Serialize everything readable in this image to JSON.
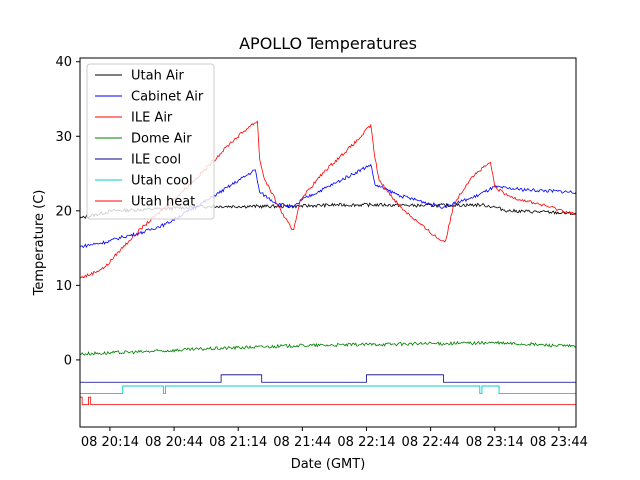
{
  "chart_data": {
    "type": "line",
    "title": "APOLLO Temperatures",
    "xlabel": "Date (GMT)",
    "ylabel": "Temperature (C)",
    "xlim": [
      1200,
      1432
    ],
    "ylim": [
      -9,
      40.5
    ],
    "x_ticks": [
      {
        "value": 1214,
        "label": "08 20:14"
      },
      {
        "value": 1244,
        "label": "08 20:44"
      },
      {
        "value": 1274,
        "label": "08 21:14"
      },
      {
        "value": 1304,
        "label": "08 21:44"
      },
      {
        "value": 1334,
        "label": "08 22:14"
      },
      {
        "value": 1364,
        "label": "08 22:44"
      },
      {
        "value": 1394,
        "label": "08 23:14"
      },
      {
        "value": 1424,
        "label": "08 23:44"
      }
    ],
    "y_ticks": [
      {
        "value": 0,
        "label": "0"
      },
      {
        "value": 10,
        "label": "10"
      },
      {
        "value": 20,
        "label": "20"
      },
      {
        "value": 30,
        "label": "30"
      },
      {
        "value": 40,
        "label": "40"
      }
    ],
    "legend_position": "top-left",
    "series": [
      {
        "name": "Utah Air",
        "color": "#000000",
        "x": [
          1200,
          1215,
          1240,
          1260,
          1280,
          1300,
          1320,
          1340,
          1360,
          1388,
          1394,
          1400,
          1420,
          1432
        ],
        "y": [
          19,
          20,
          20.3,
          20.6,
          20.6,
          20.6,
          20.8,
          20.8,
          20.7,
          20.8,
          20.5,
          20,
          19.8,
          19.6
        ]
      },
      {
        "name": "Cabinet Air",
        "color": "#0000ff",
        "x": [
          1200,
          1212,
          1220,
          1228,
          1240,
          1260,
          1282,
          1284,
          1292,
          1300,
          1304,
          1320,
          1336,
          1338,
          1350,
          1370,
          1384,
          1394,
          1400,
          1410,
          1432
        ],
        "y": [
          15.2,
          15.8,
          16.5,
          17,
          18.2,
          21.5,
          25.5,
          22.5,
          21,
          20.5,
          21.5,
          23.8,
          26.2,
          23.5,
          22,
          20.5,
          21.8,
          23.2,
          23,
          22.8,
          22.5
        ]
      },
      {
        "name": "ILE Air",
        "color": "#ff0000",
        "x": [
          1200,
          1205,
          1212,
          1218,
          1223,
          1230,
          1240,
          1255,
          1270,
          1280,
          1283,
          1284,
          1286,
          1293,
          1299,
          1300,
          1303,
          1315,
          1330,
          1336,
          1338,
          1340,
          1350,
          1362,
          1369,
          1371,
          1375,
          1383,
          1392,
          1394,
          1400,
          1420,
          1432
        ],
        "y": [
          11,
          11.5,
          12.5,
          14.5,
          16,
          18,
          20.5,
          24.5,
          29,
          31.5,
          32,
          27,
          24.5,
          20.5,
          17.5,
          17.5,
          21.5,
          25.5,
          29.5,
          31.5,
          27,
          24,
          20.5,
          17.5,
          16,
          16,
          21,
          24.5,
          26.5,
          23.2,
          22,
          20.5,
          19.5
        ]
      },
      {
        "name": "Dome Air",
        "color": "#008000",
        "x": [
          1200,
          1230,
          1260,
          1300,
          1340,
          1370,
          1392,
          1410,
          1432
        ],
        "y": [
          0.8,
          1.1,
          1.5,
          1.9,
          2.1,
          2.2,
          2.3,
          2.1,
          1.8
        ]
      },
      {
        "name": "ILE cool",
        "color": "#00008b",
        "x": [
          1200,
          1266,
          1266,
          1285,
          1285,
          1334,
          1334,
          1370,
          1370,
          1432
        ],
        "y": [
          -3,
          -3,
          -2,
          -2,
          -3,
          -3,
          -2,
          -2,
          -3,
          -3
        ]
      },
      {
        "name": "Utah cool",
        "color": "#00cccc",
        "x": [
          1200,
          1220,
          1220,
          1239,
          1239,
          1240,
          1240,
          1387,
          1387,
          1388,
          1388,
          1396,
          1396,
          1432
        ],
        "y": [
          -4.5,
          -4.5,
          -3.5,
          -3.5,
          -4.5,
          -4.5,
          -3.5,
          -3.5,
          -4.5,
          -4.5,
          -3.5,
          -3.5,
          -4.5,
          -4.5
        ],
        "width": 0.9
      },
      {
        "name": "Utah heat",
        "color": "#ff0000",
        "x": [
          1200,
          1200,
          1201,
          1201,
          1204,
          1204,
          1205,
          1205,
          1206,
          1206,
          1432
        ],
        "y": [
          -7,
          -5,
          -5,
          -6,
          -6,
          -5,
          -5,
          -6,
          -6,
          -6,
          -6
        ],
        "width": 0.8
      }
    ]
  }
}
